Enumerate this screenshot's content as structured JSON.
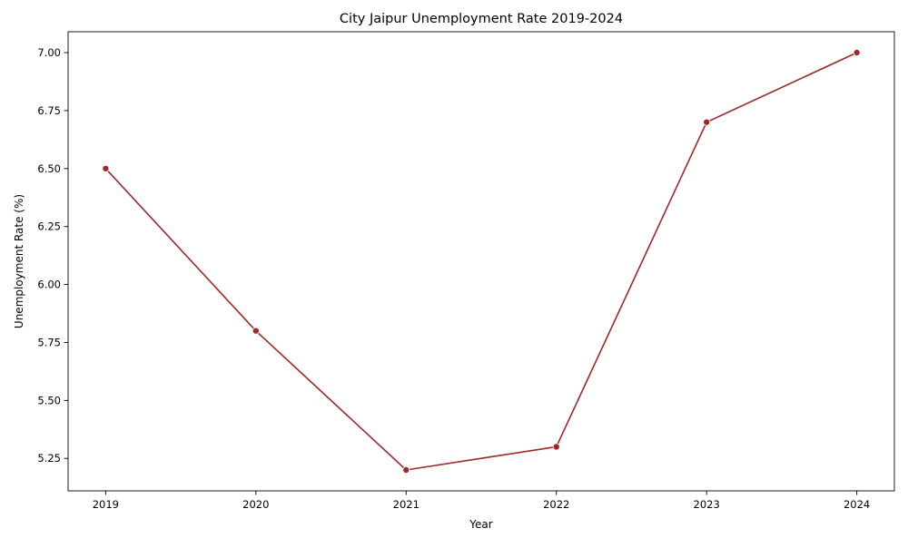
{
  "chart_data": {
    "type": "line",
    "title": "City Jaipur Unemployment Rate 2019-2024",
    "xlabel": "Year",
    "ylabel": "Unemployment Rate (%)",
    "x": [
      2019,
      2020,
      2021,
      2022,
      2023,
      2024
    ],
    "series": [
      {
        "values": [
          6.5,
          5.8,
          5.2,
          5.3,
          6.7,
          7.0
        ],
        "color": "#a02828",
        "marker": "circle"
      }
    ],
    "xlim": [
      2018.75,
      2024.25
    ],
    "ylim": [
      5.11,
      7.09
    ],
    "x_ticks": [
      "2019",
      "2020",
      "2021",
      "2022",
      "2023",
      "2024"
    ],
    "y_ticks": [
      "5.25",
      "5.50",
      "5.75",
      "6.00",
      "6.25",
      "6.50",
      "6.75",
      "7.00"
    ],
    "grid": false,
    "legend": "none"
  }
}
